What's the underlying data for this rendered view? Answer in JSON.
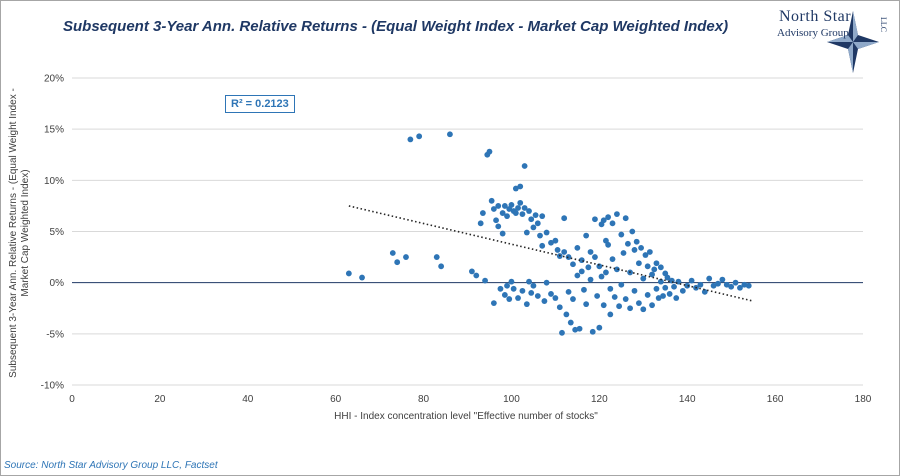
{
  "chart_data": {
    "type": "scatter",
    "title": "Subsequent 3-Year Ann. Relative Returns - (Equal Weight Index - Market Cap Weighted Index)",
    "xlabel": "HHI - Index concentration level \"Effective number of stocks\"",
    "ylabel": "Subsequent 3-Year Ann. Relative Returns - (Equal Weight Index - Market Cap Weighted Index)",
    "xlim": [
      0,
      180
    ],
    "ylim": [
      -10,
      20
    ],
    "x_ticks": [
      0,
      20,
      40,
      60,
      80,
      100,
      120,
      140,
      160,
      180
    ],
    "y_ticks": [
      -10,
      -5,
      0,
      5,
      10,
      15,
      20
    ],
    "y_tick_labels": [
      "-10%",
      "-5%",
      "0%",
      "5%",
      "10%",
      "15%",
      "20%"
    ],
    "grid": "horizontal",
    "point_color": "#2e75b6",
    "zero_line_color": "#1f3864",
    "annotation": "R² = 0.2123",
    "trendline": {
      "style": "dotted",
      "x": [
        63,
        155
      ],
      "y": [
        7.5,
        -1.8
      ]
    },
    "points": [
      [
        63,
        0.9
      ],
      [
        66,
        0.5
      ],
      [
        73,
        2.9
      ],
      [
        74,
        2.0
      ],
      [
        76,
        2.5
      ],
      [
        77,
        14.0
      ],
      [
        79,
        14.3
      ],
      [
        83,
        2.5
      ],
      [
        84,
        1.6
      ],
      [
        86,
        14.5
      ],
      [
        91,
        1.1
      ],
      [
        92,
        0.7
      ],
      [
        93,
        5.8
      ],
      [
        93.5,
        6.8
      ],
      [
        94,
        0.2
      ],
      [
        94.5,
        12.5
      ],
      [
        95,
        12.8
      ],
      [
        95.5,
        8.0
      ],
      [
        96,
        7.2
      ],
      [
        96,
        -2.0
      ],
      [
        96.5,
        6.1
      ],
      [
        97,
        5.5
      ],
      [
        97,
        7.5
      ],
      [
        97.5,
        -0.6
      ],
      [
        98,
        4.8
      ],
      [
        98,
        6.8
      ],
      [
        98.5,
        7.5
      ],
      [
        98.5,
        -1.2
      ],
      [
        99,
        6.5
      ],
      [
        99,
        -0.3
      ],
      [
        99.5,
        7.2
      ],
      [
        99.5,
        -1.6
      ],
      [
        100,
        7.6
      ],
      [
        100,
        0.1
      ],
      [
        100.5,
        7.0
      ],
      [
        100.5,
        -0.6
      ],
      [
        101,
        9.2
      ],
      [
        101,
        6.8
      ],
      [
        101.5,
        7.3
      ],
      [
        101.5,
        -1.5
      ],
      [
        102,
        9.4
      ],
      [
        102,
        7.8
      ],
      [
        102.5,
        6.7
      ],
      [
        102.5,
        -0.8
      ],
      [
        103,
        11.4
      ],
      [
        103,
        7.3
      ],
      [
        103.5,
        4.9
      ],
      [
        103.5,
        -2.1
      ],
      [
        104,
        7.0
      ],
      [
        104,
        0.1
      ],
      [
        104.5,
        6.2
      ],
      [
        104.5,
        -1.0
      ],
      [
        105,
        5.4
      ],
      [
        105,
        -0.3
      ],
      [
        105.5,
        6.6
      ],
      [
        106,
        5.8
      ],
      [
        106,
        -1.3
      ],
      [
        106.5,
        4.6
      ],
      [
        107,
        6.5
      ],
      [
        107,
        3.6
      ],
      [
        107.5,
        -1.8
      ],
      [
        108,
        4.9
      ],
      [
        108,
        0.0
      ],
      [
        109,
        3.9
      ],
      [
        109,
        -1.1
      ],
      [
        110,
        4.1
      ],
      [
        110,
        -1.5
      ],
      [
        110.5,
        3.2
      ],
      [
        111,
        2.6
      ],
      [
        111,
        -2.4
      ],
      [
        111.5,
        -4.9
      ],
      [
        112,
        6.3
      ],
      [
        112,
        3.0
      ],
      [
        112.5,
        -3.1
      ],
      [
        113,
        2.5
      ],
      [
        113,
        -0.9
      ],
      [
        113.5,
        -3.9
      ],
      [
        114,
        1.8
      ],
      [
        114,
        -1.6
      ],
      [
        114.5,
        -4.6
      ],
      [
        115,
        3.4
      ],
      [
        115,
        0.7
      ],
      [
        115.5,
        -4.5
      ],
      [
        116,
        2.2
      ],
      [
        116,
        1.1
      ],
      [
        116.5,
        -0.7
      ],
      [
        117,
        4.6
      ],
      [
        117,
        -2.1
      ],
      [
        117.5,
        1.5
      ],
      [
        118,
        3.0
      ],
      [
        118,
        0.3
      ],
      [
        118.5,
        -4.8
      ],
      [
        119,
        6.2
      ],
      [
        119,
        2.5
      ],
      [
        119.5,
        -1.3
      ],
      [
        120,
        -4.4
      ],
      [
        120,
        1.6
      ],
      [
        120.5,
        5.7
      ],
      [
        120.5,
        0.6
      ],
      [
        121,
        6.1
      ],
      [
        121,
        -2.2
      ],
      [
        121.5,
        4.1
      ],
      [
        121.5,
        1.0
      ],
      [
        122,
        6.4
      ],
      [
        122,
        3.7
      ],
      [
        122.5,
        -0.6
      ],
      [
        122.5,
        -3.1
      ],
      [
        123,
        5.8
      ],
      [
        123,
        2.3
      ],
      [
        123.5,
        -1.4
      ],
      [
        124,
        6.7
      ],
      [
        124,
        1.3
      ],
      [
        124.5,
        -2.3
      ],
      [
        125,
        4.7
      ],
      [
        125,
        -0.2
      ],
      [
        125.5,
        2.9
      ],
      [
        126,
        6.3
      ],
      [
        126,
        -1.6
      ],
      [
        126.5,
        3.8
      ],
      [
        127,
        1.0
      ],
      [
        127,
        -2.5
      ],
      [
        127.5,
        5.0
      ],
      [
        128,
        3.2
      ],
      [
        128,
        -0.8
      ],
      [
        128.5,
        4.0
      ],
      [
        129,
        1.9
      ],
      [
        129,
        -2.0
      ],
      [
        129.5,
        3.4
      ],
      [
        130,
        0.4
      ],
      [
        130,
        -2.6
      ],
      [
        130.5,
        2.7
      ],
      [
        131,
        1.6
      ],
      [
        131,
        -1.2
      ],
      [
        131.5,
        3.0
      ],
      [
        132,
        0.8
      ],
      [
        132,
        -2.2
      ],
      [
        132.5,
        1.3
      ],
      [
        133,
        1.9
      ],
      [
        133,
        -0.6
      ],
      [
        133.5,
        -1.5
      ],
      [
        134,
        1.5
      ],
      [
        134,
        0.1
      ],
      [
        134.5,
        -1.3
      ],
      [
        135,
        0.9
      ],
      [
        135,
        -0.5
      ],
      [
        135.5,
        0.5
      ],
      [
        136,
        -1.1
      ],
      [
        136.5,
        0.2
      ],
      [
        137,
        -0.4
      ],
      [
        137.5,
        -1.5
      ],
      [
        138,
        0.1
      ],
      [
        139,
        -0.8
      ],
      [
        140,
        -0.3
      ],
      [
        141,
        0.2
      ],
      [
        142,
        -0.5
      ],
      [
        143,
        -0.2
      ],
      [
        144,
        -0.9
      ],
      [
        145,
        0.4
      ],
      [
        146,
        -0.3
      ],
      [
        147,
        -0.1
      ],
      [
        148,
        0.3
      ],
      [
        149,
        -0.2
      ],
      [
        150,
        -0.4
      ],
      [
        151,
        0.0
      ],
      [
        152,
        -0.5
      ],
      [
        153,
        -0.2
      ],
      [
        154,
        -0.3
      ]
    ]
  },
  "logo": {
    "line1": "North Star",
    "line2": "Advisory Group",
    "llc": "LLC"
  },
  "source": "Source: North Star Advisory Group LLC, Factset"
}
